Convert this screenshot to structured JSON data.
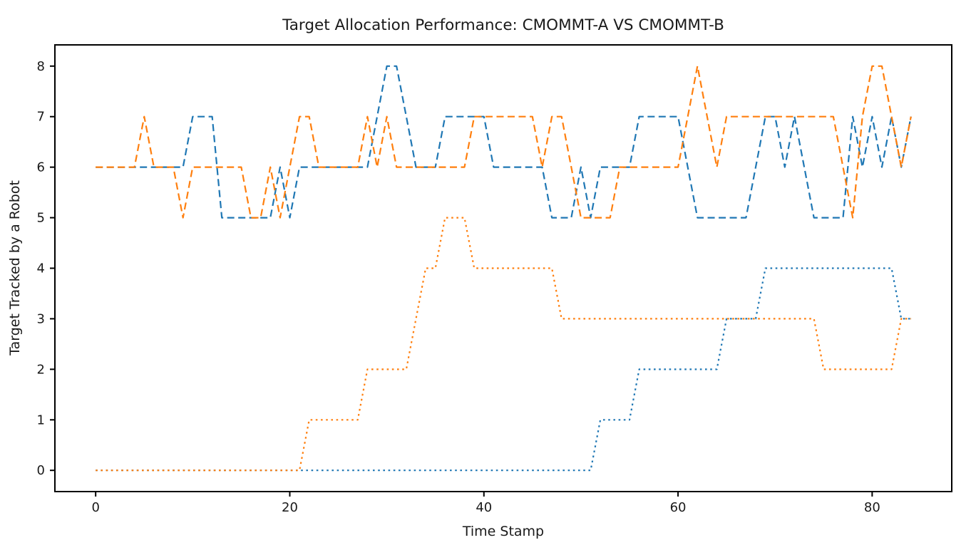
{
  "figure": {
    "title": "Target Allocation Performance: CMOMMT-A VS CMOMMT-B",
    "xlabel": "Time Stamp",
    "ylabel": "Target Tracked by a Robot"
  },
  "colors": {
    "series_blue": "#1f77b4",
    "series_orange": "#ff7f0e",
    "axis": "#000000",
    "text": "#1a1a1a",
    "background": "#ffffff"
  },
  "chart_data": {
    "type": "line",
    "title": "Target Allocation Performance: CMOMMT-A VS CMOMMT-B",
    "xlabel": "Time Stamp",
    "ylabel": "Target Tracked by a Robot",
    "grid": false,
    "legend": "none",
    "xlim": [
      -4.2,
      88.2
    ],
    "ylim": [
      -0.42,
      8.42
    ],
    "x_ticks": [
      0,
      20,
      40,
      60,
      80
    ],
    "y_ticks": [
      0,
      1,
      2,
      3,
      4,
      5,
      6,
      7,
      8
    ],
    "x": [
      0,
      1,
      2,
      3,
      4,
      5,
      6,
      7,
      8,
      9,
      10,
      11,
      12,
      13,
      14,
      15,
      16,
      17,
      18,
      19,
      20,
      21,
      22,
      23,
      24,
      25,
      26,
      27,
      28,
      29,
      30,
      31,
      32,
      33,
      34,
      35,
      36,
      37,
      38,
      39,
      40,
      41,
      42,
      43,
      44,
      45,
      46,
      47,
      48,
      49,
      50,
      51,
      52,
      53,
      54,
      55,
      56,
      57,
      58,
      59,
      60,
      61,
      62,
      63,
      64,
      65,
      66,
      67,
      68,
      69,
      70,
      71,
      72,
      73,
      74,
      75,
      76,
      77,
      78,
      79,
      80,
      81,
      82,
      83,
      84
    ],
    "series": [
      {
        "name": "blue-dashed-high-series",
        "color": "#1f77b4",
        "linestyle": "dashed",
        "values": [
          6,
          6,
          6,
          6,
          6,
          6,
          6,
          6,
          6,
          6,
          7,
          7,
          7,
          5,
          5,
          5,
          5,
          5,
          5,
          6,
          5,
          6,
          6,
          6,
          6,
          6,
          6,
          6,
          6,
          7,
          8,
          8,
          7,
          6,
          6,
          6,
          7,
          7,
          7,
          7,
          7,
          6,
          6,
          6,
          6,
          6,
          6,
          5,
          5,
          5,
          6,
          5,
          6,
          6,
          6,
          6,
          7,
          7,
          7,
          7,
          7,
          6,
          5,
          5,
          5,
          5,
          5,
          5,
          6,
          7,
          7,
          6,
          7,
          6,
          5,
          5,
          5,
          5,
          7,
          6,
          7,
          6,
          7,
          6,
          7
        ]
      },
      {
        "name": "orange-dashed-high-series",
        "color": "#ff7f0e",
        "linestyle": "dashed",
        "values": [
          6,
          6,
          6,
          6,
          6,
          7,
          6,
          6,
          6,
          5,
          6,
          6,
          6,
          6,
          6,
          6,
          5,
          5,
          6,
          5,
          6,
          7,
          7,
          6,
          6,
          6,
          6,
          6,
          7,
          6,
          7,
          6,
          6,
          6,
          6,
          6,
          6,
          6,
          6,
          7,
          7,
          7,
          7,
          7,
          7,
          7,
          6,
          7,
          7,
          6,
          5,
          5,
          5,
          5,
          6,
          6,
          6,
          6,
          6,
          6,
          6,
          7,
          8,
          7,
          6,
          7,
          7,
          7,
          7,
          7,
          7,
          7,
          7,
          7,
          7,
          7,
          7,
          6,
          5,
          7,
          8,
          8,
          7,
          6,
          7
        ]
      },
      {
        "name": "blue-dotted-low-series",
        "color": "#1f77b4",
        "linestyle": "dotted",
        "values": [
          0,
          0,
          0,
          0,
          0,
          0,
          0,
          0,
          0,
          0,
          0,
          0,
          0,
          0,
          0,
          0,
          0,
          0,
          0,
          0,
          0,
          0,
          0,
          0,
          0,
          0,
          0,
          0,
          0,
          0,
          0,
          0,
          0,
          0,
          0,
          0,
          0,
          0,
          0,
          0,
          0,
          0,
          0,
          0,
          0,
          0,
          0,
          0,
          0,
          0,
          0,
          0,
          1,
          1,
          1,
          1,
          2,
          2,
          2,
          2,
          2,
          2,
          2,
          2,
          2,
          3,
          3,
          3,
          3,
          4,
          4,
          4,
          4,
          4,
          4,
          4,
          4,
          4,
          4,
          4,
          4,
          4,
          4,
          3,
          3
        ]
      },
      {
        "name": "orange-dotted-low-series",
        "color": "#ff7f0e",
        "linestyle": "dotted",
        "values": [
          0,
          0,
          0,
          0,
          0,
          0,
          0,
          0,
          0,
          0,
          0,
          0,
          0,
          0,
          0,
          0,
          0,
          0,
          0,
          0,
          0,
          0,
          1,
          1,
          1,
          1,
          1,
          1,
          2,
          2,
          2,
          2,
          2,
          3,
          4,
          4,
          5,
          5,
          5,
          4,
          4,
          4,
          4,
          4,
          4,
          4,
          4,
          4,
          3,
          3,
          3,
          3,
          3,
          3,
          3,
          3,
          3,
          3,
          3,
          3,
          3,
          3,
          3,
          3,
          3,
          3,
          3,
          3,
          3,
          3,
          3,
          3,
          3,
          3,
          3,
          2,
          2,
          2,
          2,
          2,
          2,
          2,
          2,
          3,
          3
        ]
      }
    ]
  }
}
